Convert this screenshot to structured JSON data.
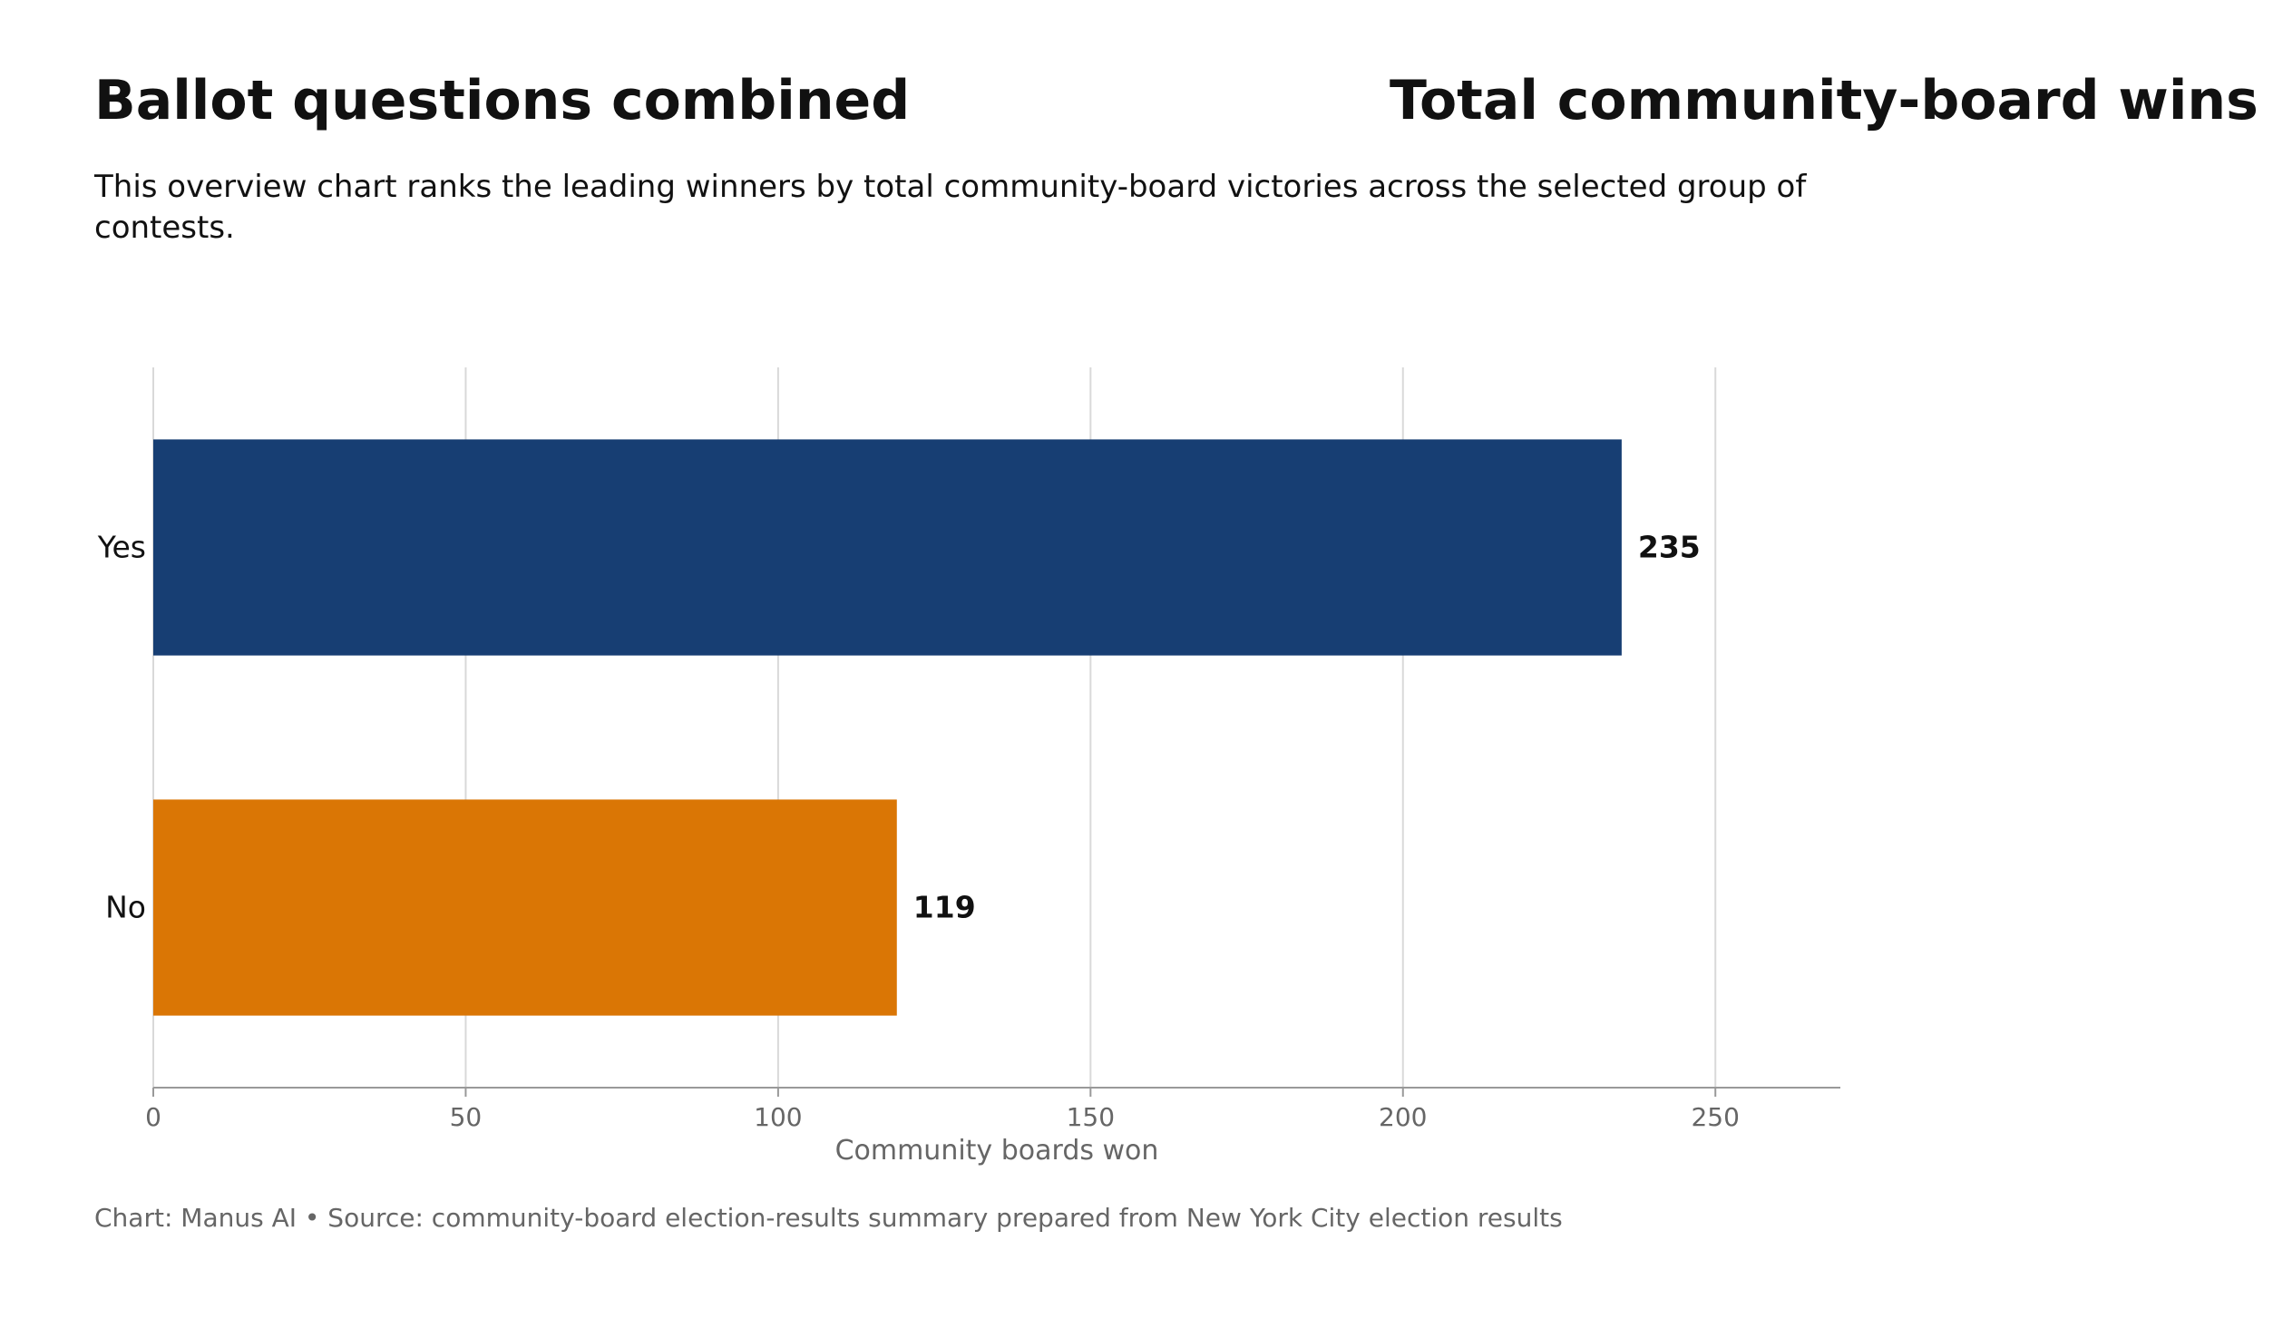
{
  "header": {
    "title_left": "Ballot questions combined",
    "title_right": "Total community-board wins",
    "subtitle": "This overview chart ranks the leading winners by total community-board victories across the selected group of contests."
  },
  "footer": {
    "caption": "Chart: Manus AI • Source: community-board election-results summary prepared from New York City election results"
  },
  "chart_data": {
    "type": "bar",
    "orientation": "horizontal",
    "categories": [
      "Yes",
      "No"
    ],
    "values": [
      235,
      119
    ],
    "colors": [
      "#173e73",
      "#da7605"
    ],
    "xlabel": "Community boards won",
    "ylabel": "",
    "xlim": [
      0,
      270
    ],
    "xticks": [
      0,
      50,
      100,
      150,
      200,
      250
    ],
    "grid": true,
    "data_labels": true
  }
}
